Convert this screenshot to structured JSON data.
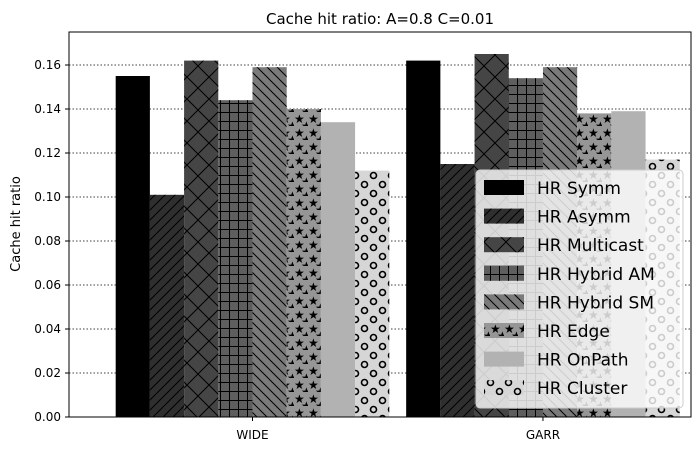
{
  "chart_data": {
    "type": "bar",
    "title": "Cache hit ratio: A=0.8 C=0.01",
    "xlabel": "",
    "ylabel": "Cache hit ratio",
    "categories": [
      "WIDE",
      "GARR"
    ],
    "ylim": [
      0,
      0.175
    ],
    "yticks": [
      "0.00",
      "0.02",
      "0.04",
      "0.06",
      "0.08",
      "0.10",
      "0.12",
      "0.14",
      "0.16"
    ],
    "grid": "horizontal dotted",
    "legend_position": "lower-right",
    "series": [
      {
        "name": "HR Symm",
        "values": [
          0.155,
          0.162
        ],
        "color": "#000000",
        "pattern": "none"
      },
      {
        "name": "HR Asymm",
        "values": [
          0.101,
          0.115
        ],
        "color": "#2f2f2f",
        "pattern": "diagonal"
      },
      {
        "name": "HR Multicast",
        "values": [
          0.162,
          0.165
        ],
        "color": "#454545",
        "pattern": "crosshatch-diagonal"
      },
      {
        "name": "HR Hybrid AM",
        "values": [
          0.144,
          0.154
        ],
        "color": "#5e5e5e",
        "pattern": "grid"
      },
      {
        "name": "HR Hybrid SM",
        "values": [
          0.159,
          0.159
        ],
        "color": "#7a7a7a",
        "pattern": "backslash"
      },
      {
        "name": "HR Edge",
        "values": [
          0.14,
          0.138
        ],
        "color": "#969696",
        "pattern": "stars"
      },
      {
        "name": "HR OnPath",
        "values": [
          0.134,
          0.139
        ],
        "color": "#b2b2b2",
        "pattern": "none"
      },
      {
        "name": "HR Cluster",
        "values": [
          0.112,
          0.117
        ],
        "color": "#d6d6d6",
        "pattern": "circles"
      }
    ]
  }
}
